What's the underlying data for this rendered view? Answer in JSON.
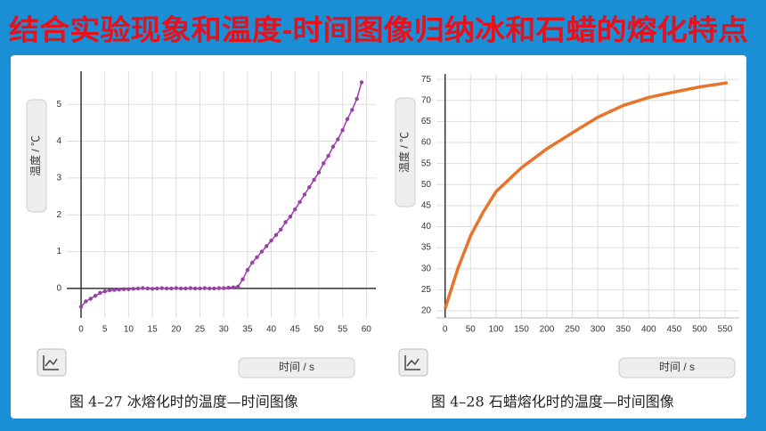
{
  "title": "结合实验现象和温度-时间图像归纳冰和石蜡的熔化特点",
  "chart_data": [
    {
      "type": "line",
      "ylabel": "温度 / ℃",
      "xlabel": "时间 / s",
      "caption": "图 4–27 冰熔化时的温度—时间图像",
      "color": "#9b3fa8",
      "markers": true,
      "grid": true,
      "xlim": [
        -3,
        62
      ],
      "ylim": [
        -0.8,
        5.9
      ],
      "xticks": [
        0,
        5,
        10,
        15,
        20,
        25,
        30,
        35,
        40,
        45,
        50,
        55,
        60
      ],
      "yticks": [
        0,
        1,
        2,
        3,
        4,
        5
      ],
      "x": [
        0,
        1,
        2,
        3,
        4,
        5,
        6,
        7,
        8,
        9,
        10,
        11,
        12,
        13,
        14,
        15,
        16,
        17,
        18,
        19,
        20,
        21,
        22,
        23,
        24,
        25,
        26,
        27,
        28,
        29,
        30,
        31,
        32,
        33,
        34,
        35,
        36,
        37,
        38,
        39,
        40,
        41,
        42,
        43,
        44,
        45,
        46,
        47,
        48,
        49,
        50,
        51,
        52,
        53,
        54,
        55,
        56,
        57,
        58,
        59
      ],
      "values": [
        -0.5,
        -0.35,
        -0.28,
        -0.2,
        -0.12,
        -0.08,
        -0.05,
        -0.04,
        -0.03,
        -0.02,
        -0.02,
        -0.01,
        0,
        0.01,
        0,
        -0.01,
        0,
        0.01,
        0,
        0,
        0.01,
        0,
        0,
        0.01,
        0,
        0,
        0.01,
        0,
        0,
        0.01,
        0.01,
        0.02,
        0.03,
        0.05,
        0.25,
        0.5,
        0.7,
        0.85,
        1.0,
        1.15,
        1.3,
        1.45,
        1.6,
        1.8,
        1.95,
        2.15,
        2.35,
        2.55,
        2.75,
        2.95,
        3.15,
        3.4,
        3.6,
        3.85,
        4.05,
        4.3,
        4.6,
        4.85,
        5.15,
        5.6
      ]
    },
    {
      "type": "line",
      "ylabel": "温度 / ℃",
      "xlabel": "时间 / s",
      "caption": "图 4–28 石蜡熔化时的温度—时间图像",
      "color": "#e8732a",
      "markers": false,
      "grid": true,
      "xlim": [
        -17,
        578
      ],
      "ylim": [
        18.3,
        76.3
      ],
      "xticks": [
        0,
        50,
        100,
        150,
        200,
        250,
        300,
        350,
        400,
        450,
        500,
        550
      ],
      "yticks": [
        20,
        25,
        30,
        35,
        40,
        45,
        50,
        55,
        60,
        65,
        70,
        75
      ],
      "x": [
        0,
        25,
        50,
        75,
        100,
        150,
        200,
        250,
        300,
        350,
        400,
        450,
        500,
        555
      ],
      "values": [
        20.5,
        30,
        37.8,
        43.5,
        48.3,
        54,
        58.5,
        62.3,
        66,
        68.8,
        70.7,
        72,
        73.2,
        74.2
      ]
    }
  ]
}
